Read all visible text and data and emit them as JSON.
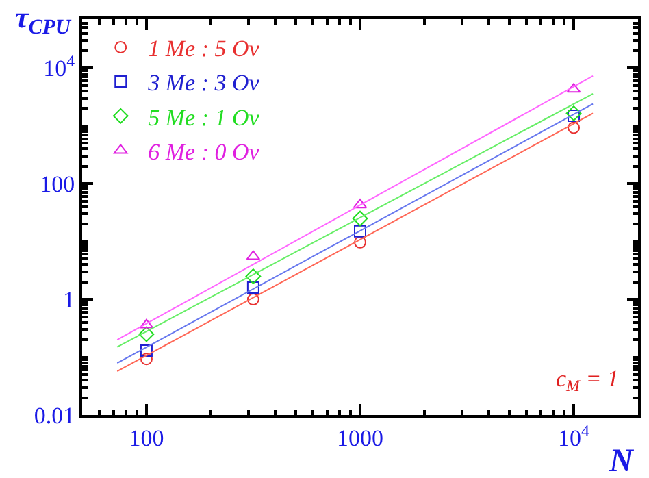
{
  "chart_data": {
    "type": "scatter",
    "xlabel": "N",
    "ylabel": "τ$_{CPU}$",
    "log": "xy",
    "grid": false,
    "legend": "top left",
    "xlim": [
      50,
      20000
    ],
    "ylim": [
      0.01,
      70000
    ],
    "xticks": [
      100,
      1000,
      {
        "value": 10000,
        "label": "10$^{4}$"
      }
    ],
    "yticks": [
      0.01,
      1,
      100,
      {
        "value": 10000,
        "label": "10$^{4}$"
      }
    ],
    "annotations": [
      "c$_{M}$ = 1"
    ],
    "series": [
      {
        "name": "1 Me : 5 Ov",
        "marker": "circle",
        "color": "#e83030",
        "x": [
          100,
          316,
          1000,
          10000
        ],
        "values": [
          0.093,
          1.0,
          9.7,
          930
        ]
      },
      {
        "name": "3 Me : 3 Ov",
        "marker": "square",
        "color": "#2020d0",
        "x": [
          100,
          316,
          1000,
          10000
        ],
        "values": [
          0.13,
          1.6,
          15,
          1500
        ]
      },
      {
        "name": "5 Me : 1 Ov",
        "marker": "diamond",
        "color": "#22dd22",
        "x": [
          100,
          316,
          1000,
          10000
        ],
        "values": [
          0.25,
          2.5,
          25,
          1650
        ]
      },
      {
        "name": "6 Me : 0 Ov",
        "marker": "triangle",
        "color": "#e020e0",
        "x": [
          100,
          316,
          1000,
          10000
        ],
        "values": [
          0.36,
          5.5,
          43,
          4300
        ]
      },
      {
        "type": "line",
        "color": "#ff6655",
        "x": [
          73,
          12300
        ],
        "values": [
          0.057,
          1650
        ]
      },
      {
        "type": "line",
        "color": "#6677ee",
        "x": [
          73,
          12300
        ],
        "values": [
          0.079,
          2400
        ]
      },
      {
        "type": "line",
        "color": "#66ee66",
        "x": [
          73,
          12300
        ],
        "values": [
          0.15,
          3600
        ]
      },
      {
        "type": "line",
        "color": "#ff66ff",
        "x": [
          73,
          12300
        ],
        "values": [
          0.2,
          7300
        ]
      }
    ]
  }
}
